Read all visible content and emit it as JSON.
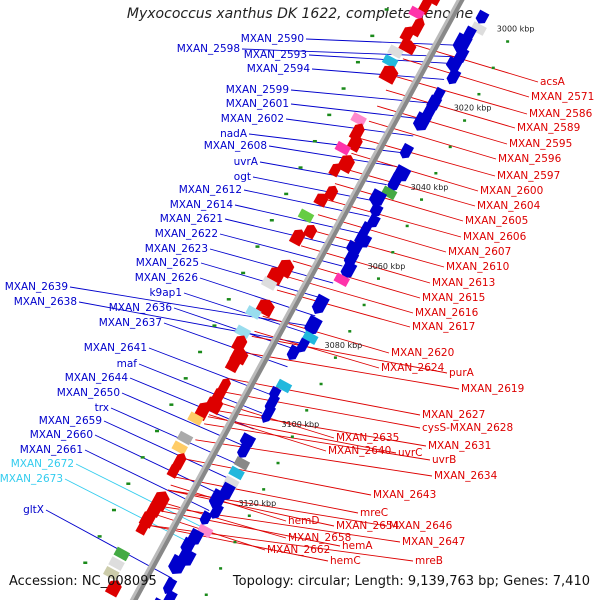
{
  "title": "Myxococcus xanthus DK 1622, complete genome",
  "footer": {
    "accession": "Accession: NC_008095",
    "stats": "Topology: circular; Length: 9,139,763 bp; Genes: 7,410"
  },
  "colors": {
    "forward_strand": "#0000cc",
    "reverse_strand": "#dd0000",
    "rna": "#33ccee",
    "backbone": "#888888"
  },
  "kbp_ticks": [
    "3000 kbp",
    "3020 kbp",
    "3040 kbp",
    "3060 kbp",
    "3080 kbp",
    "3100 kbp",
    "3120 kbp"
  ],
  "left_labels": [
    {
      "text": "MXAN_2590",
      "type": "forward"
    },
    {
      "text": "MXAN_2598",
      "type": "forward"
    },
    {
      "text": "MXAN_2593",
      "type": "forward"
    },
    {
      "text": "MXAN_2594",
      "type": "forward"
    },
    {
      "text": "MXAN_2599",
      "type": "forward"
    },
    {
      "text": "MXAN_2601",
      "type": "forward"
    },
    {
      "text": "MXAN_2602",
      "type": "forward"
    },
    {
      "text": "nadA",
      "type": "forward"
    },
    {
      "text": "MXAN_2608",
      "type": "forward"
    },
    {
      "text": "uvrA",
      "type": "forward"
    },
    {
      "text": "ogt",
      "type": "forward"
    },
    {
      "text": "MXAN_2612",
      "type": "forward"
    },
    {
      "text": "MXAN_2614",
      "type": "forward"
    },
    {
      "text": "MXAN_2621",
      "type": "forward"
    },
    {
      "text": "MXAN_2622",
      "type": "forward"
    },
    {
      "text": "MXAN_2623",
      "type": "forward"
    },
    {
      "text": "MXAN_2625",
      "type": "forward"
    },
    {
      "text": "MXAN_2626",
      "type": "forward"
    },
    {
      "text": "k9ap1",
      "type": "forward"
    },
    {
      "text": "MXAN_2639",
      "type": "forward"
    },
    {
      "text": "MXAN_2638",
      "type": "forward"
    },
    {
      "text": "MXAN_2636",
      "type": "forward"
    },
    {
      "text": "MXAN_2637",
      "type": "forward"
    },
    {
      "text": "MXAN_2641",
      "type": "forward"
    },
    {
      "text": "maf",
      "type": "forward"
    },
    {
      "text": "MXAN_2644",
      "type": "forward"
    },
    {
      "text": "MXAN_2650",
      "type": "forward"
    },
    {
      "text": "trx",
      "type": "forward"
    },
    {
      "text": "MXAN_2659",
      "type": "forward"
    },
    {
      "text": "MXAN_2660",
      "type": "forward"
    },
    {
      "text": "MXAN_2661",
      "type": "forward"
    },
    {
      "text": "MXAN_2672",
      "type": "rna"
    },
    {
      "text": "MXAN_2673",
      "type": "rna"
    },
    {
      "text": "gltX",
      "type": "forward"
    }
  ],
  "right_labels": [
    {
      "text": "acsA",
      "type": "reverse"
    },
    {
      "text": "MXAN_2571",
      "type": "reverse"
    },
    {
      "text": "MXAN_2586",
      "type": "reverse"
    },
    {
      "text": "MXAN_2589",
      "type": "reverse"
    },
    {
      "text": "MXAN_2595",
      "type": "reverse"
    },
    {
      "text": "MXAN_2596",
      "type": "reverse"
    },
    {
      "text": "MXAN_2597",
      "type": "reverse"
    },
    {
      "text": "MXAN_2600",
      "type": "reverse"
    },
    {
      "text": "MXAN_2604",
      "type": "reverse"
    },
    {
      "text": "MXAN_2605",
      "type": "reverse"
    },
    {
      "text": "MXAN_2606",
      "type": "reverse"
    },
    {
      "text": "MXAN_2607",
      "type": "reverse"
    },
    {
      "text": "MXAN_2610",
      "type": "reverse"
    },
    {
      "text": "MXAN_2613",
      "type": "reverse"
    },
    {
      "text": "MXAN_2615",
      "type": "reverse"
    },
    {
      "text": "MXAN_2616",
      "type": "reverse"
    },
    {
      "text": "MXAN_2617",
      "type": "reverse"
    },
    {
      "text": "MXAN_2620",
      "type": "reverse"
    },
    {
      "text": "purA",
      "type": "reverse"
    },
    {
      "text": "MXAN_2624",
      "type": "reverse"
    },
    {
      "text": "MXAN_2619",
      "type": "reverse"
    },
    {
      "text": "MXAN_2627",
      "type": "reverse"
    },
    {
      "text": "cysS-MXAN_2628",
      "type": "reverse"
    },
    {
      "text": "MXAN_2635",
      "type": "reverse"
    },
    {
      "text": "MXAN_2631",
      "type": "reverse"
    },
    {
      "text": "MXAN_2640",
      "type": "reverse"
    },
    {
      "text": "uvrC",
      "type": "reverse"
    },
    {
      "text": "uvrB",
      "type": "reverse"
    },
    {
      "text": "MXAN_2634",
      "type": "reverse"
    },
    {
      "text": "MXAN_2643",
      "type": "reverse"
    },
    {
      "text": "mreC",
      "type": "reverse"
    },
    {
      "text": "hemD",
      "type": "reverse"
    },
    {
      "text": "MXAN_2654",
      "type": "reverse"
    },
    {
      "text": "MXAN_2646",
      "type": "reverse"
    },
    {
      "text": "MXAN_2658",
      "type": "reverse"
    },
    {
      "text": "hemA",
      "type": "reverse"
    },
    {
      "text": "MXAN_2647",
      "type": "reverse"
    },
    {
      "text": "hemC",
      "type": "reverse"
    },
    {
      "text": "mreB",
      "type": "reverse"
    },
    {
      "text": "MXAN_2662",
      "type": "reverse"
    }
  ]
}
